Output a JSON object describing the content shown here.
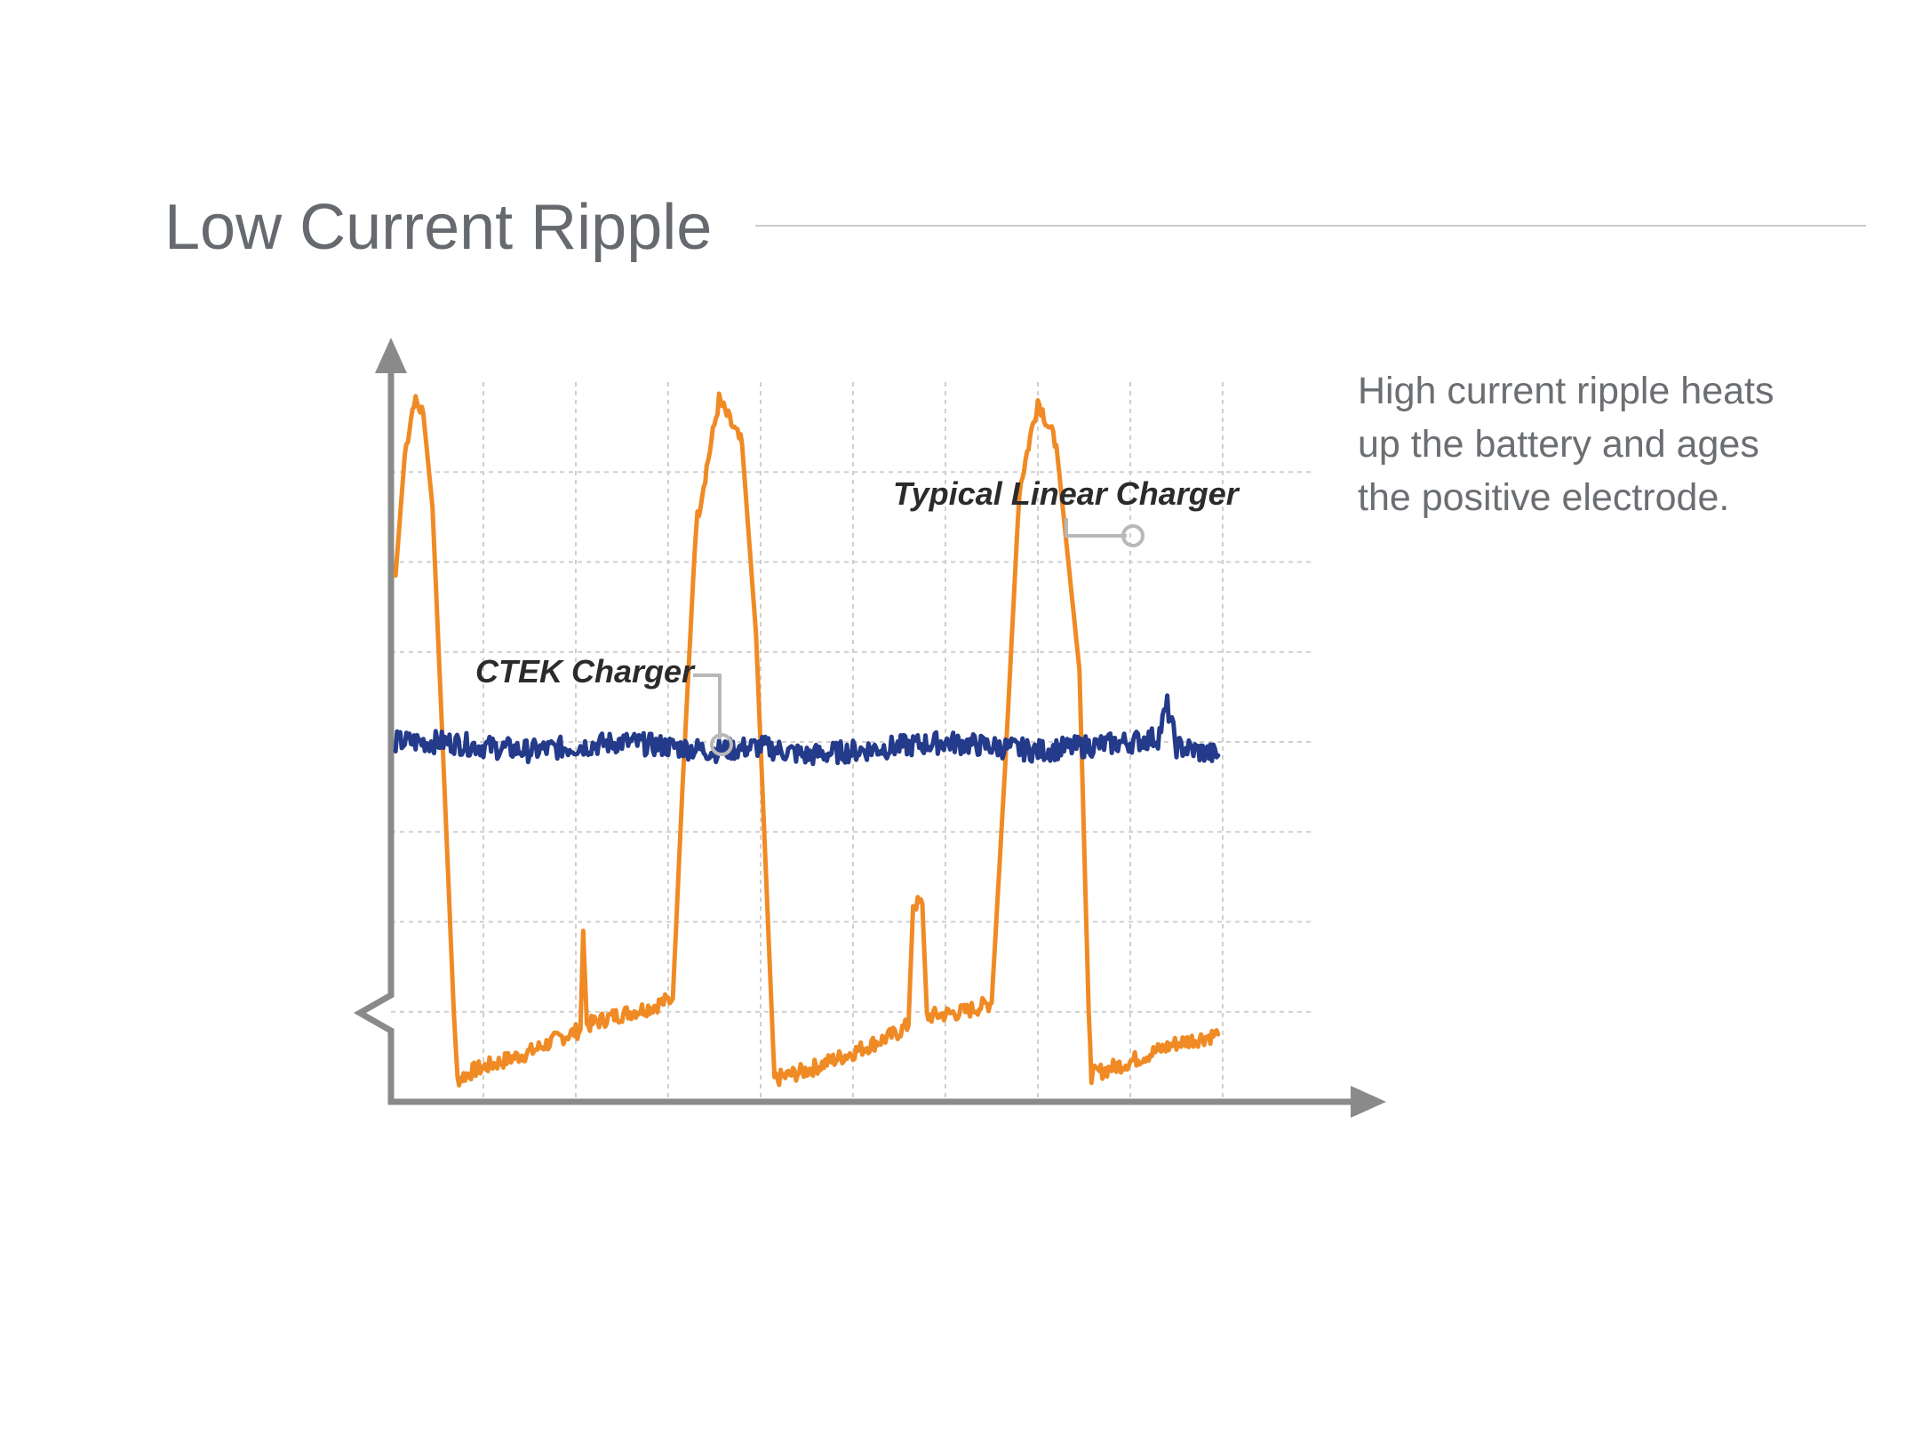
{
  "page": {
    "title": "Low Current Ripple",
    "description_lines": [
      "High current ripple heats",
      "up the battery and ages",
      "the positive electrode."
    ]
  },
  "colors": {
    "title": "#666a6e",
    "axis": "#8a8a8a",
    "grid": "#cfcfcf",
    "linear_charger": "#f08a24",
    "ctek_charger": "#243a8a",
    "annotation": "#2b2b2b",
    "leader": "#b8b8b8"
  },
  "chart_data": {
    "type": "line",
    "title": "",
    "xlabel": "",
    "ylabel": "",
    "xlim": [
      0,
      10
    ],
    "ylim": [
      0,
      8
    ],
    "grid": true,
    "legend": "inline labels",
    "series": [
      {
        "name": "Typical Linear Charger",
        "points": [
          [
            0.05,
            5.85
          ],
          [
            0.15,
            7.2
          ],
          [
            0.25,
            7.8
          ],
          [
            0.35,
            7.65
          ],
          [
            0.45,
            6.6
          ],
          [
            0.55,
            4.2
          ],
          [
            0.68,
            1.0
          ],
          [
            0.72,
            0.25
          ],
          [
            0.9,
            0.35
          ],
          [
            1.2,
            0.45
          ],
          [
            1.5,
            0.55
          ],
          [
            1.8,
            0.7
          ],
          [
            2.05,
            0.8
          ],
          [
            2.08,
            1.9
          ],
          [
            2.12,
            0.85
          ],
          [
            2.4,
            0.95
          ],
          [
            2.8,
            1.05
          ],
          [
            3.05,
            1.15
          ],
          [
            3.15,
            3.4
          ],
          [
            3.3,
            6.4
          ],
          [
            3.55,
            7.8
          ],
          [
            3.8,
            7.3
          ],
          [
            3.95,
            5.2
          ],
          [
            4.12,
            1.0
          ],
          [
            4.15,
            0.25
          ],
          [
            4.5,
            0.35
          ],
          [
            5.0,
            0.55
          ],
          [
            5.45,
            0.75
          ],
          [
            5.6,
            0.85
          ],
          [
            5.65,
            2.2
          ],
          [
            5.75,
            2.2
          ],
          [
            5.8,
            0.95
          ],
          [
            6.2,
            1.0
          ],
          [
            6.5,
            1.1
          ],
          [
            6.65,
            3.8
          ],
          [
            6.8,
            6.8
          ],
          [
            7.0,
            7.8
          ],
          [
            7.2,
            7.3
          ],
          [
            7.45,
            4.8
          ],
          [
            7.55,
            1.0
          ],
          [
            7.58,
            0.3
          ],
          [
            8.0,
            0.45
          ],
          [
            8.5,
            0.65
          ],
          [
            8.95,
            0.75
          ]
        ]
      },
      {
        "name": "CTEK Charger",
        "points": [
          [
            0.05,
            4.0
          ],
          [
            0.6,
            4.0
          ],
          [
            1.0,
            3.95
          ],
          [
            1.5,
            3.9
          ],
          [
            2.0,
            3.95
          ],
          [
            2.5,
            4.0
          ],
          [
            3.0,
            3.95
          ],
          [
            3.5,
            3.9
          ],
          [
            4.0,
            3.95
          ],
          [
            4.5,
            3.85
          ],
          [
            5.0,
            3.9
          ],
          [
            5.5,
            3.95
          ],
          [
            6.0,
            4.0
          ],
          [
            6.5,
            3.95
          ],
          [
            7.0,
            3.9
          ],
          [
            7.5,
            3.95
          ],
          [
            8.0,
            4.0
          ],
          [
            8.3,
            4.05
          ],
          [
            8.4,
            4.4
          ],
          [
            8.5,
            3.95
          ],
          [
            8.95,
            3.85
          ]
        ]
      }
    ],
    "annotations": [
      {
        "text": "Typical Linear Charger",
        "target_series": "Typical Linear Charger"
      },
      {
        "text": "CTEK Charger",
        "target_series": "CTEK Charger"
      }
    ]
  }
}
